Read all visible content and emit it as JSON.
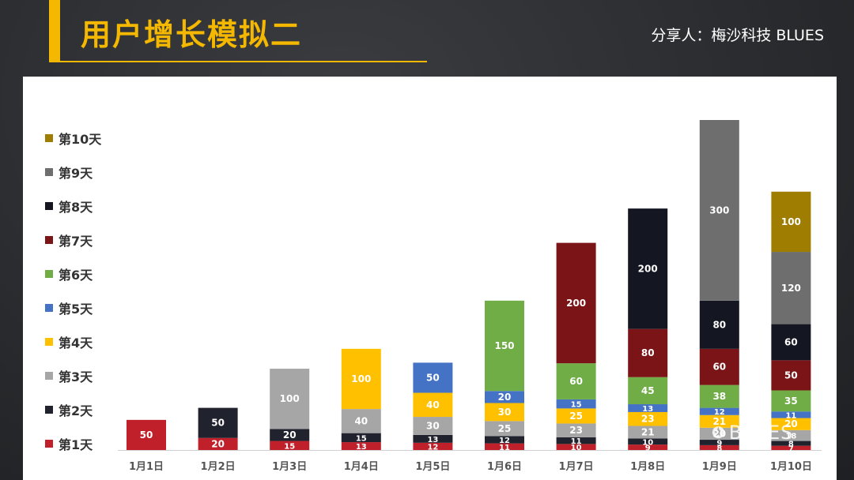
{
  "header": {
    "title": "用户增长模拟二",
    "subtitle": "分享人：梅沙科技  BLUES"
  },
  "watermark": "BLUES",
  "colors": {
    "accent": "#f5b800"
  },
  "chart_data": {
    "type": "bar",
    "stacked": true,
    "categories": [
      "1月1日",
      "1月2日",
      "1月3日",
      "1月4日",
      "1月5日",
      "1月6日",
      "1月7日",
      "1月8日",
      "1月9日",
      "1月10日"
    ],
    "series": [
      {
        "name": "第1天",
        "color": "#c0202a",
        "values": [
          50,
          20,
          15,
          13,
          12,
          11,
          10,
          9,
          8,
          7
        ]
      },
      {
        "name": "第2天",
        "color": "#20222e",
        "values": [
          0,
          50,
          20,
          15,
          13,
          12,
          11,
          10,
          9,
          8
        ]
      },
      {
        "name": "第3天",
        "color": "#a6a6a6",
        "values": [
          0,
          0,
          100,
          40,
          30,
          25,
          23,
          21,
          20,
          18
        ]
      },
      {
        "name": "第4天",
        "color": "#ffc000",
        "values": [
          0,
          0,
          0,
          100,
          40,
          30,
          25,
          23,
          21,
          20
        ]
      },
      {
        "name": "第5天",
        "color": "#4472c4",
        "values": [
          0,
          0,
          0,
          0,
          50,
          20,
          15,
          13,
          12,
          11
        ]
      },
      {
        "name": "第6天",
        "color": "#70ad47",
        "values": [
          0,
          0,
          0,
          0,
          0,
          150,
          60,
          45,
          38,
          35
        ]
      },
      {
        "name": "第7天",
        "color": "#7b1416",
        "values": [
          0,
          0,
          0,
          0,
          0,
          0,
          200,
          80,
          60,
          50
        ]
      },
      {
        "name": "第8天",
        "color": "#141621",
        "values": [
          0,
          0,
          0,
          0,
          0,
          0,
          0,
          200,
          80,
          60
        ]
      },
      {
        "name": "第9天",
        "color": "#6e6e6e",
        "values": [
          0,
          0,
          0,
          0,
          0,
          0,
          0,
          0,
          300,
          120
        ]
      },
      {
        "name": "第10天",
        "color": "#9f7d00",
        "values": [
          0,
          0,
          0,
          0,
          0,
          0,
          0,
          0,
          0,
          100
        ]
      }
    ],
    "legend_position": "left",
    "grid": false
  }
}
